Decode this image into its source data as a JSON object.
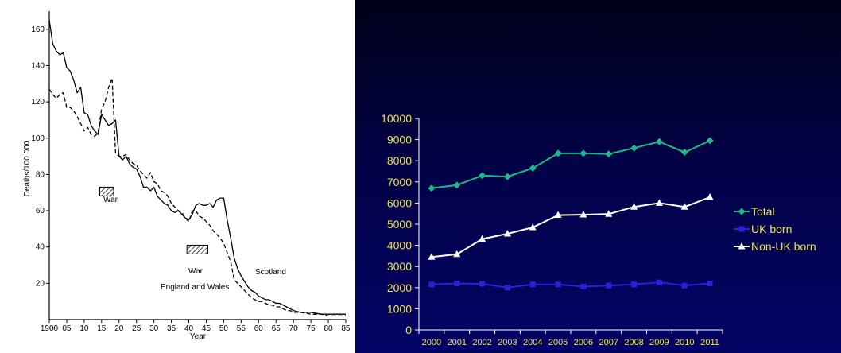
{
  "chart_data": [
    {
      "type": "line",
      "title": "",
      "xlabel": "Year",
      "ylabel": "Deaths/100 000",
      "xlim": [
        1900,
        1985
      ],
      "ylim": [
        0,
        170
      ],
      "x_ticks": [
        "1900",
        "05",
        "10",
        "15",
        "20",
        "25",
        "30",
        "35",
        "40",
        "45",
        "50",
        "55",
        "60",
        "65",
        "70",
        "75",
        "80",
        "85"
      ],
      "y_ticks": [
        20,
        40,
        60,
        80,
        100,
        120,
        140,
        160
      ],
      "annotations": {
        "war": "War",
        "scotland": "Scotland",
        "england": "England and Wales"
      },
      "war_periods": [
        [
          1914,
          1918
        ],
        [
          1939,
          1945
        ]
      ],
      "series": [
        {
          "name": "Scotland",
          "style": "solid",
          "x": [
            1900,
            1901,
            1902,
            1903,
            1904,
            1905,
            1906,
            1907,
            1908,
            1909,
            1910,
            1911,
            1912,
            1913,
            1914,
            1915,
            1916,
            1917,
            1918,
            1919,
            1920,
            1921,
            1922,
            1923,
            1924,
            1925,
            1926,
            1927,
            1928,
            1929,
            1930,
            1931,
            1932,
            1933,
            1934,
            1935,
            1936,
            1937,
            1938,
            1939,
            1940,
            1941,
            1942,
            1943,
            1944,
            1945,
            1946,
            1947,
            1948,
            1949,
            1950,
            1951,
            1952,
            1953,
            1954,
            1955,
            1956,
            1957,
            1958,
            1959,
            1960,
            1961,
            1962,
            1963,
            1964,
            1965,
            1966,
            1967,
            1968,
            1969,
            1970,
            1972,
            1975,
            1978,
            1980,
            1983,
            1985
          ],
          "values": [
            165,
            152,
            148,
            146,
            147,
            139,
            137,
            132,
            125,
            128,
            114,
            113,
            107,
            104,
            102,
            113,
            110,
            107,
            108,
            110,
            90,
            88,
            90,
            86,
            84,
            83,
            79,
            73,
            73,
            71,
            73,
            68,
            66,
            64,
            63,
            60,
            59,
            60,
            58,
            56,
            55,
            58,
            63,
            64,
            63,
            63,
            64,
            62,
            66,
            67,
            67,
            55,
            45,
            34,
            28,
            24,
            21,
            18,
            16,
            15,
            13,
            12,
            11,
            11,
            10,
            9,
            9,
            8,
            7,
            6,
            5,
            4,
            4,
            3,
            3,
            3,
            3
          ]
        },
        {
          "name": "England and Wales",
          "style": "dashed",
          "x": [
            1900,
            1901,
            1902,
            1903,
            1904,
            1905,
            1906,
            1907,
            1908,
            1909,
            1910,
            1911,
            1912,
            1913,
            1914,
            1915,
            1916,
            1917,
            1918,
            1919,
            1920,
            1921,
            1922,
            1923,
            1924,
            1925,
            1926,
            1927,
            1928,
            1929,
            1930,
            1931,
            1932,
            1933,
            1934,
            1935,
            1936,
            1937,
            1938,
            1939,
            1940,
            1941,
            1942,
            1943,
            1944,
            1945,
            1946,
            1947,
            1948,
            1949,
            1950,
            1951,
            1952,
            1953,
            1954,
            1955,
            1956,
            1957,
            1958,
            1959,
            1960,
            1961,
            1962,
            1963,
            1964,
            1965,
            1966,
            1967,
            1968,
            1969,
            1970,
            1972,
            1975,
            1978,
            1980,
            1983,
            1985
          ],
          "values": [
            127,
            124,
            122,
            124,
            125,
            117,
            117,
            115,
            112,
            108,
            104,
            106,
            102,
            101,
            103,
            116,
            120,
            128,
            133,
            92,
            90,
            90,
            91,
            88,
            86,
            85,
            82,
            80,
            78,
            81,
            76,
            75,
            71,
            70,
            68,
            64,
            62,
            60,
            59,
            56,
            54,
            60,
            60,
            57,
            56,
            54,
            52,
            49,
            47,
            45,
            42,
            37,
            32,
            22,
            20,
            18,
            16,
            14,
            12,
            11,
            10,
            10,
            9,
            8,
            8,
            7,
            7,
            6,
            5,
            5,
            4,
            4,
            3,
            3,
            2,
            2,
            2
          ]
        }
      ]
    },
    {
      "type": "line",
      "title": "",
      "xlabel": "",
      "ylabel": "",
      "ylim": [
        0,
        10000
      ],
      "y_ticks": [
        0,
        1000,
        2000,
        3000,
        4000,
        5000,
        6000,
        7000,
        8000,
        9000,
        10000
      ],
      "categories": [
        "2000",
        "2001",
        "2002",
        "2003",
        "2004",
        "2005",
        "2006",
        "2007",
        "2008",
        "2009",
        "2010",
        "2011"
      ],
      "legend_position": "right",
      "series": [
        {
          "name": "Total",
          "marker": "diamond",
          "color": "#1fb88a",
          "values": [
            6700,
            6850,
            7300,
            7250,
            7650,
            8350,
            8350,
            8320,
            8600,
            8900,
            8400,
            8950
          ]
        },
        {
          "name": "UK born",
          "marker": "square",
          "color": "#2424d6",
          "values": [
            2150,
            2200,
            2180,
            2000,
            2150,
            2150,
            2050,
            2100,
            2150,
            2250,
            2100,
            2200
          ]
        },
        {
          "name": "Non-UK born",
          "marker": "triangle",
          "color": "#ffffff",
          "values": [
            3450,
            3580,
            4300,
            4550,
            4850,
            5430,
            5450,
            5480,
            5820,
            6000,
            5820,
            6280
          ]
        }
      ]
    }
  ]
}
